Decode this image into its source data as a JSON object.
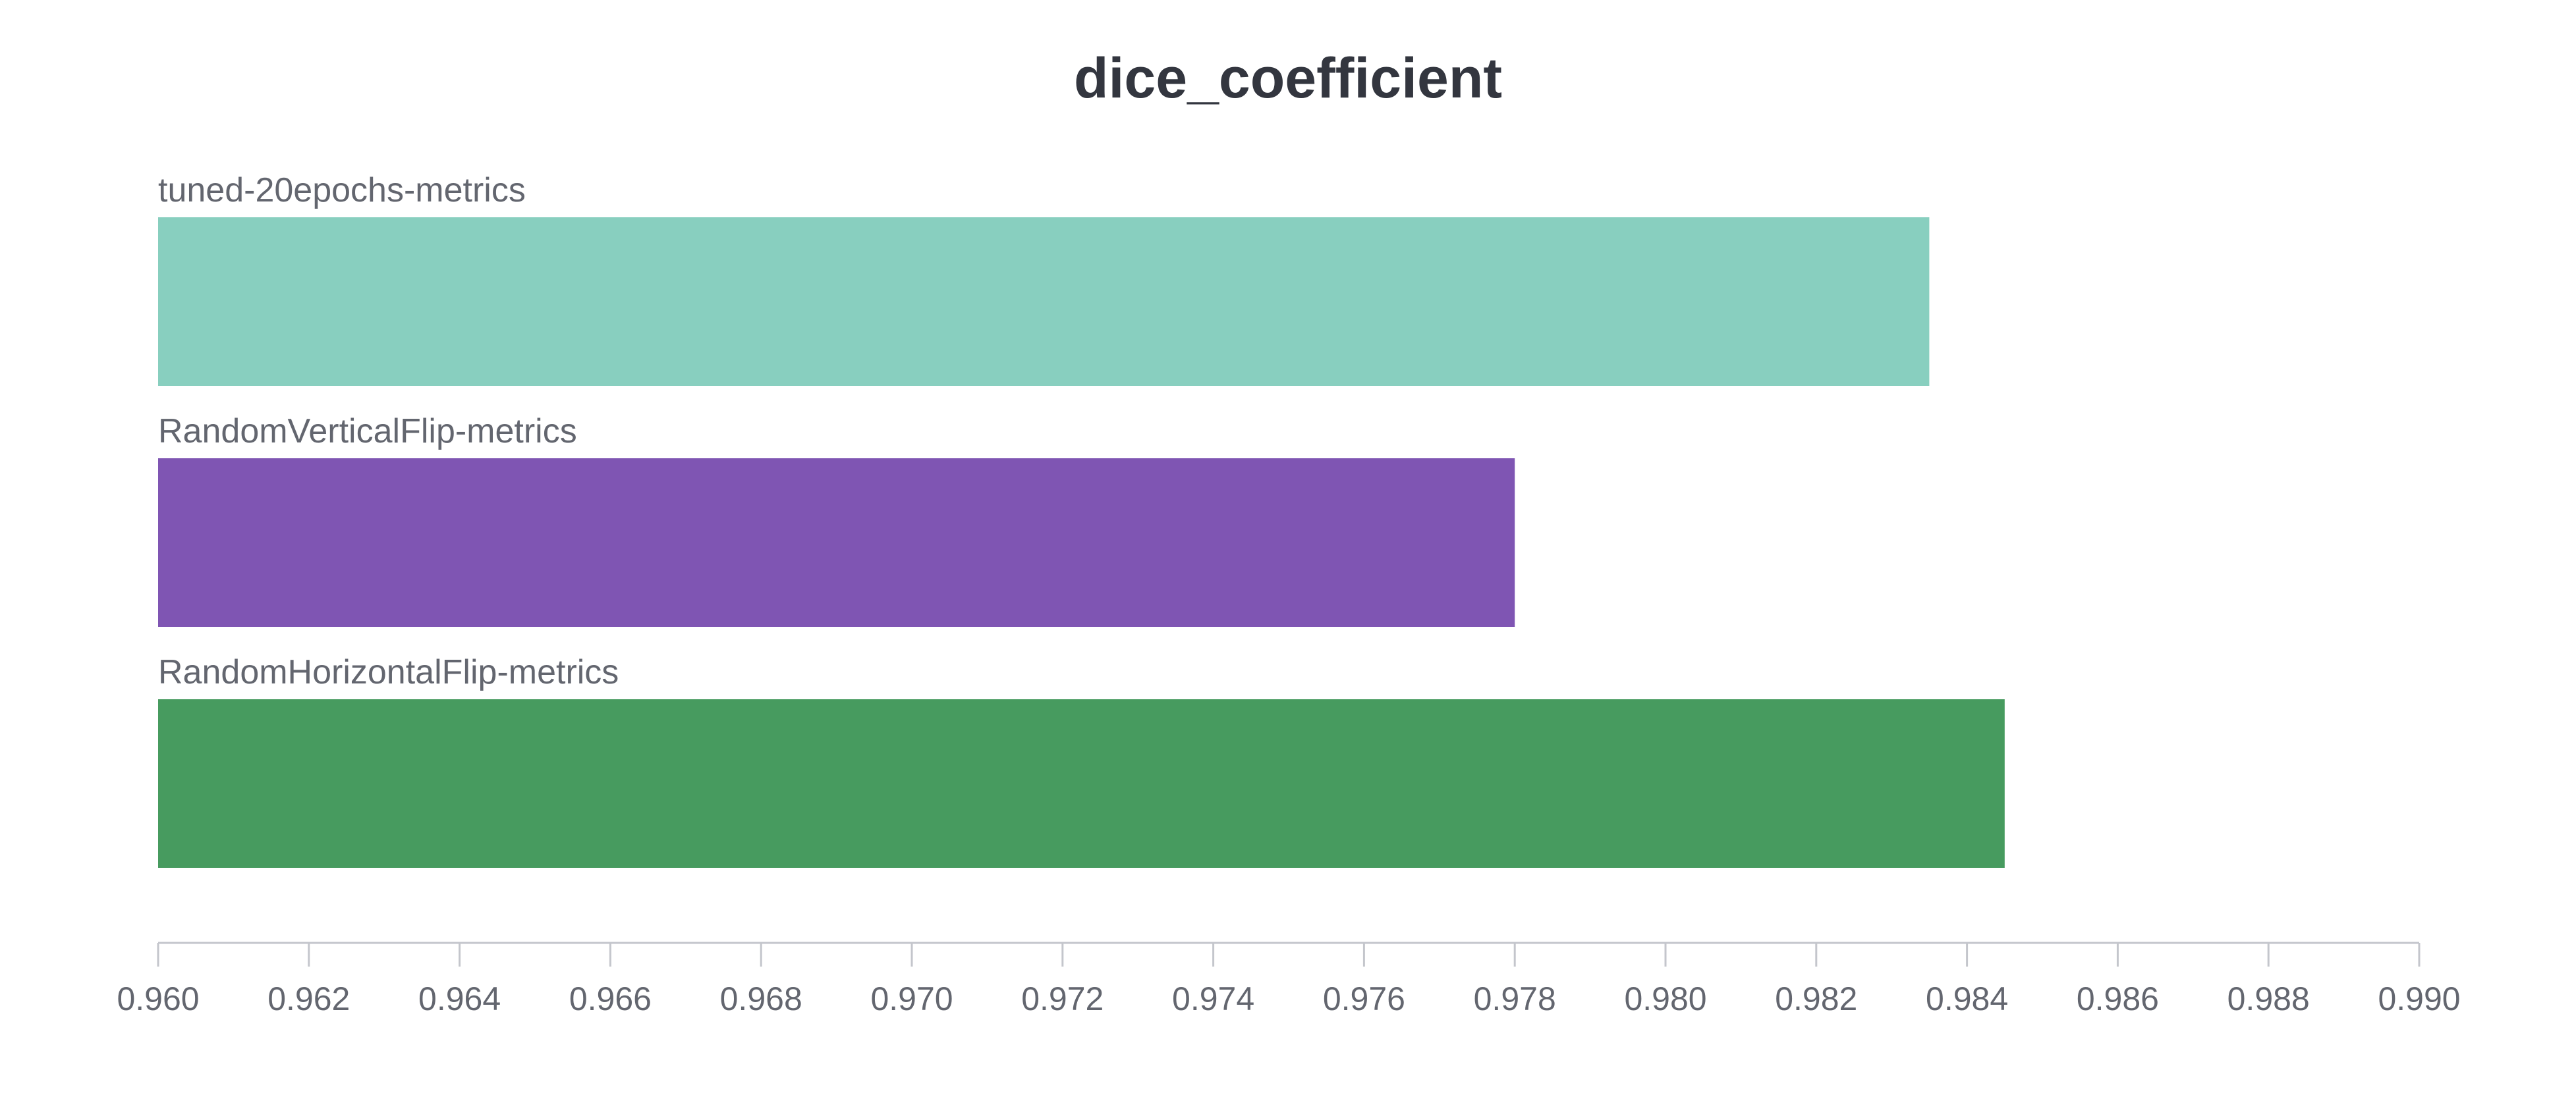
{
  "chart_data": {
    "type": "bar",
    "orientation": "horizontal",
    "title": "dice_coefficient",
    "xlabel": "",
    "ylabel": "",
    "xlim": [
      0.96,
      0.99
    ],
    "grid": false,
    "legend": "none",
    "categories": [
      "tuned-20epochs-metrics",
      "RandomVerticalFlip-metrics",
      "RandomHorizontalFlip-metrics"
    ],
    "values": [
      0.9835,
      0.978,
      0.9845
    ],
    "colors": [
      "#88cfbf",
      "#7f55b3",
      "#479b5f"
    ],
    "xticks": [
      "0.960",
      "0.962",
      "0.964",
      "0.966",
      "0.968",
      "0.970",
      "0.972",
      "0.974",
      "0.976",
      "0.978",
      "0.980",
      "0.982",
      "0.984",
      "0.986",
      "0.988",
      "0.990"
    ]
  }
}
